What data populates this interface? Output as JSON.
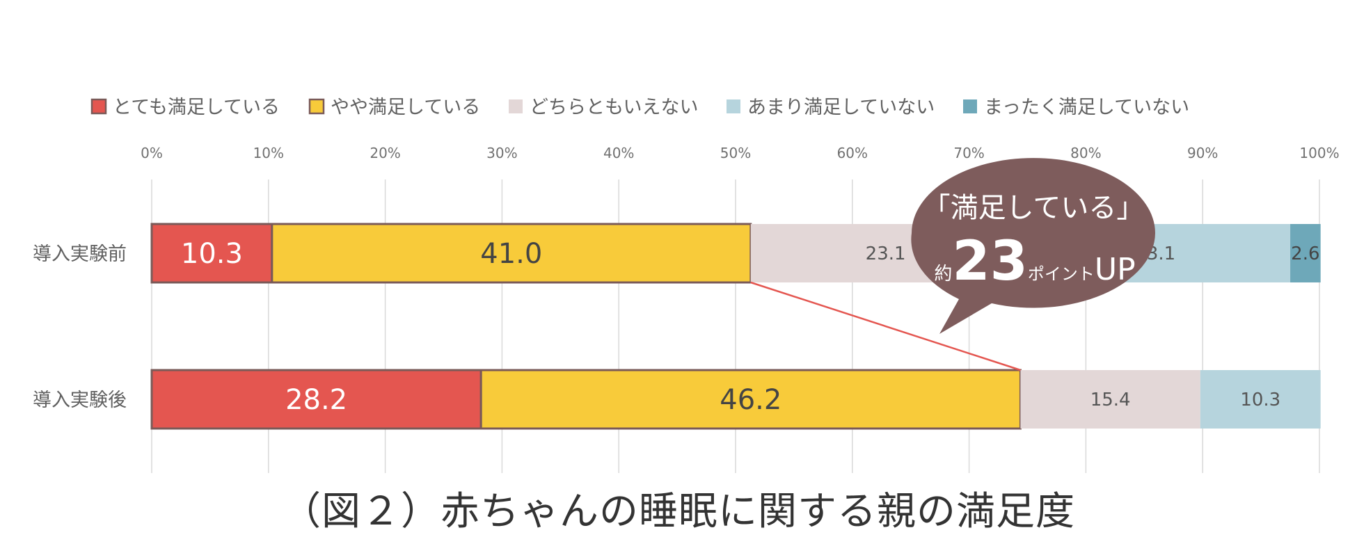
{
  "chart_data": {
    "type": "bar",
    "orientation": "horizontal",
    "stacked": "percent",
    "categories": [
      "導入実験前",
      "導入実験後"
    ],
    "series": [
      {
        "name": "とても満足している",
        "values": [
          10.3,
          28.2
        ],
        "color": "#e45650",
        "label_color": "#ffffff"
      },
      {
        "name": "やや満足している",
        "values": [
          41.0,
          46.2
        ],
        "color": "#f8cb3a",
        "label_color": "#444444"
      },
      {
        "name": "どちらともいえない",
        "values": [
          23.1,
          15.4
        ],
        "color": "#e3d7d7",
        "label_color": "#555555"
      },
      {
        "name": "あまり満足していない",
        "values": [
          23.1,
          10.3
        ],
        "color": "#b6d4dd",
        "label_color": "#555555"
      },
      {
        "name": "まったく満足していない",
        "values": [
          2.6,
          0
        ],
        "color": "#6ea8b9",
        "label_color": "#444444"
      }
    ],
    "highlight_series_count": 2,
    "xlim": [
      0,
      100
    ],
    "xticks": [
      "0%",
      "10%",
      "20%",
      "30%",
      "40%",
      "50%",
      "60%",
      "70%",
      "80%",
      "90%",
      "100%"
    ],
    "grid": true,
    "legend_position": "top",
    "connector_color": "#e45650",
    "highlight_border_color": "#7a5a58",
    "callout": {
      "line1": "「満足している」",
      "prefix": "約",
      "number": "23",
      "suffix": "ポイントUP",
      "color": "#7e5c5c",
      "text_color": "#ffffff"
    }
  },
  "caption": "（図２）赤ちゃんの睡眠に関する親の満足度"
}
